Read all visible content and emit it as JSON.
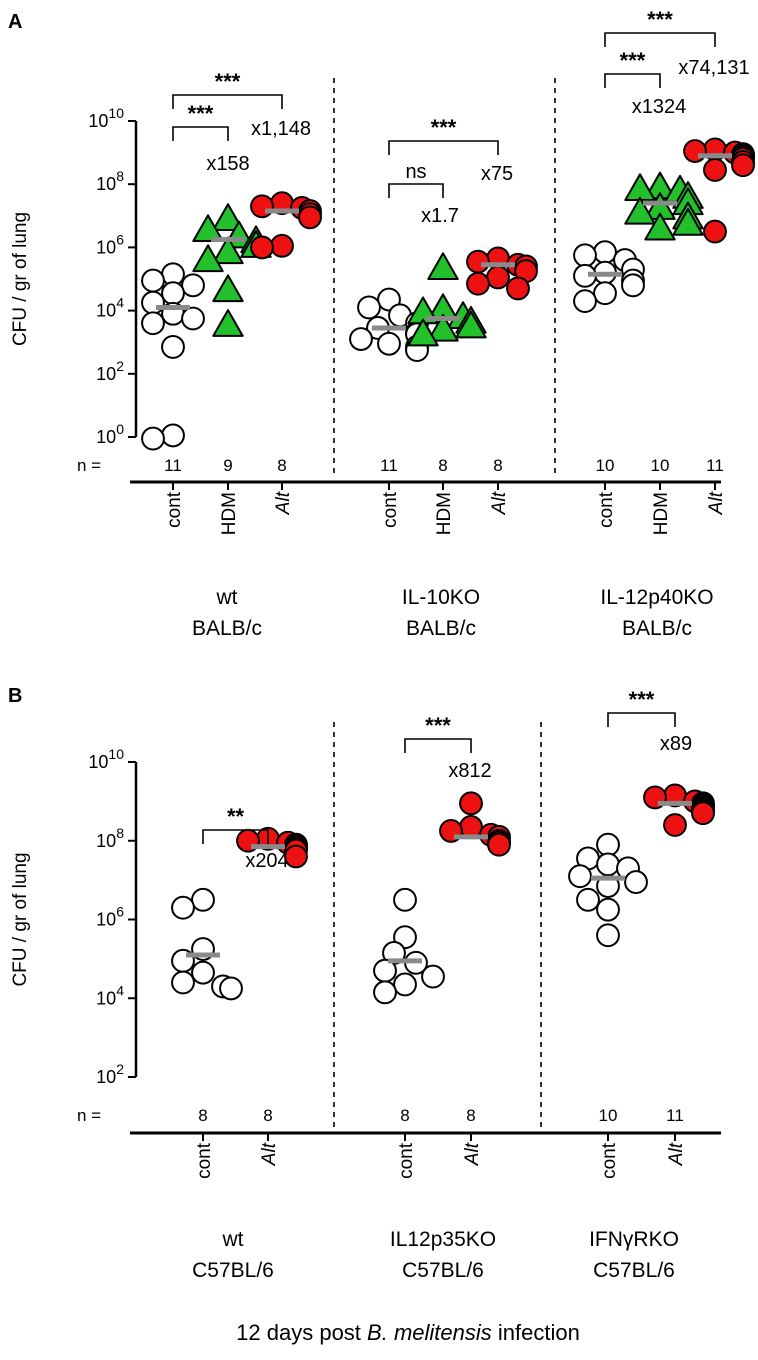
{
  "footer": {
    "prefix": "12 days post ",
    "species": "B. melitensis",
    "suffix": " infection"
  },
  "chart_data": [
    {
      "panel": "A",
      "type": "scatter",
      "yscale": "log10",
      "ylim_exp": [
        0,
        10
      ],
      "yticks": [
        {
          "base": "10",
          "exp": "0"
        },
        {
          "base": "10",
          "exp": "2"
        },
        {
          "base": "10",
          "exp": "4"
        },
        {
          "base": "10",
          "exp": "6"
        },
        {
          "base": "10",
          "exp": "8"
        },
        {
          "base": "10",
          "exp": "10"
        }
      ],
      "ylabel": "CFU / gr of lung",
      "n_label": "n =",
      "groups": [
        {
          "line1": "wt",
          "line2": "BALB/c",
          "conditions": [
            {
              "label": "cont",
              "italic": false,
              "n": "11",
              "marker": "circle",
              "color": "#ffffff",
              "log_values": [
                5.15,
                4.95,
                4.8,
                4.55,
                4.25,
                3.9,
                3.75,
                3.6,
                2.85,
                0.05,
                -0.05
              ],
              "median": 4.1
            },
            {
              "label": "HDM",
              "italic": false,
              "n": "9",
              "marker": "triangle",
              "color": "#22c02a",
              "log_values": [
                6.9,
                6.55,
                6.35,
                6.2,
                6.05,
                5.85,
                5.6,
                4.65,
                3.55
              ],
              "median": 6.25
            },
            {
              "label": "Alt",
              "italic": true,
              "n": "8",
              "marker": "circle",
              "color": "#ee1111",
              "log_values": [
                7.4,
                7.3,
                7.25,
                7.15,
                7.05,
                6.95,
                6.05,
                6.0
              ],
              "median": 7.15
            }
          ],
          "comparisons": [
            {
              "sig": "***",
              "fold": "x158",
              "from": 0,
              "to": 1
            },
            {
              "sig": "***",
              "fold": "x1,148",
              "from": 0,
              "to": 2
            }
          ]
        },
        {
          "line1": "IL-10KO",
          "line2": "BALB/c",
          "conditions": [
            {
              "label": "cont",
              "italic": false,
              "n": "11",
              "marker": "circle",
              "color": "#ffffff",
              "log_values": [
                4.35,
                4.1,
                3.85,
                3.6,
                3.45,
                3.3,
                3.25,
                3.1,
                2.95,
                2.85,
                2.75
              ],
              "median": 3.45
            },
            {
              "label": "HDM",
              "italic": false,
              "n": "8",
              "marker": "triangle",
              "color": "#22c02a",
              "log_values": [
                5.35,
                4.05,
                3.95,
                3.8,
                3.65,
                3.5,
                3.4,
                3.25
              ],
              "median": 3.75
            },
            {
              "label": "Alt",
              "italic": true,
              "n": "8",
              "marker": "circle",
              "color": "#ee1111",
              "log_values": [
                5.65,
                5.55,
                5.45,
                5.4,
                5.25,
                5.05,
                4.85,
                4.7
              ],
              "median": 5.45
            }
          ],
          "comparisons": [
            {
              "sig": "ns",
              "fold": "x1.7",
              "from": 0,
              "to": 1
            },
            {
              "sig": "***",
              "fold": "x75",
              "from": 0,
              "to": 2
            }
          ]
        },
        {
          "line1": "IL-12p40KO",
          "line2": "BALB/c",
          "conditions": [
            {
              "label": "cont",
              "italic": false,
              "n": "10",
              "marker": "circle",
              "color": "#ffffff",
              "log_values": [
                5.85,
                5.75,
                5.6,
                5.3,
                5.2,
                5.1,
                4.95,
                4.8,
                4.55,
                4.3
              ],
              "median": 5.15
            },
            {
              "label": "HDM",
              "italic": false,
              "n": "10",
              "marker": "triangle",
              "color": "#22c02a",
              "log_values": [
                7.9,
                7.85,
                7.8,
                7.6,
                7.4,
                7.25,
                7.1,
                6.95,
                6.75,
                6.6
              ],
              "median": 7.4
            },
            {
              "label": "Alt",
              "italic": true,
              "n": "11",
              "marker": "circle",
              "color": "#ee1111",
              "log_values": [
                9.1,
                9.05,
                9.0,
                8.95,
                8.9,
                8.85,
                8.8,
                8.7,
                8.6,
                8.45,
                6.5
              ],
              "median": 8.9
            }
          ],
          "comparisons": [
            {
              "sig": "***",
              "fold": "x1324",
              "from": 0,
              "to": 1
            },
            {
              "sig": "***",
              "fold": "x74,131",
              "from": 0,
              "to": 2
            }
          ]
        }
      ]
    },
    {
      "panel": "B",
      "type": "scatter",
      "yscale": "log10",
      "ylim_exp": [
        2,
        10
      ],
      "yticks": [
        {
          "base": "10",
          "exp": "2"
        },
        {
          "base": "10",
          "exp": "4"
        },
        {
          "base": "10",
          "exp": "6"
        },
        {
          "base": "10",
          "exp": "8"
        },
        {
          "base": "10",
          "exp": "10"
        }
      ],
      "ylabel": "CFU / gr of lung",
      "n_label": "n =",
      "groups": [
        {
          "line1": "wt",
          "line2": "C57BL/6",
          "conditions": [
            {
              "label": "cont",
              "italic": false,
              "n": "8",
              "marker": "circle",
              "color": "#ffffff",
              "log_values": [
                6.5,
                6.3,
                5.25,
                4.95,
                4.65,
                4.4,
                4.3,
                4.25
              ],
              "median": 5.1
            },
            {
              "label": "Alt",
              "italic": true,
              "n": "8",
              "marker": "circle",
              "color": "#ee1111",
              "log_values": [
                8.05,
                8.0,
                7.95,
                7.9,
                7.85,
                7.8,
                7.75,
                7.6
              ],
              "median": 7.85
            }
          ],
          "comparisons": [
            {
              "sig": "**",
              "fold": "x204",
              "from": 0,
              "to": 1
            }
          ]
        },
        {
          "line1": "IL12p35KO",
          "line2": "C57BL/6",
          "conditions": [
            {
              "label": "cont",
              "italic": false,
              "n": "8",
              "marker": "circle",
              "color": "#ffffff",
              "log_values": [
                6.5,
                5.55,
                5.15,
                4.9,
                4.7,
                4.55,
                4.35,
                4.15
              ],
              "median": 4.95
            },
            {
              "label": "Alt",
              "italic": true,
              "n": "8",
              "marker": "circle",
              "color": "#ee1111",
              "log_values": [
                8.95,
                8.35,
                8.25,
                8.15,
                8.1,
                8.0,
                7.95,
                7.9
              ],
              "median": 8.1
            },
            {
              "label": "",
              "italic": false,
              "n": "",
              "marker": "none",
              "color": "#ffffff",
              "log_values": []
            }
          ],
          "comparisons": [
            {
              "sig": "***",
              "fold": "x812",
              "from": 0,
              "to": 1
            }
          ]
        },
        {
          "line1": "IFNγRKO",
          "line2": "C57BL/6",
          "conditions": [
            {
              "label": "cont",
              "italic": false,
              "n": "10",
              "marker": "circle",
              "color": "#ffffff",
              "log_values": [
                7.9,
                7.55,
                7.4,
                7.3,
                7.1,
                6.95,
                6.85,
                6.5,
                6.25,
                5.6
              ],
              "median": 7.05
            },
            {
              "label": "Alt",
              "italic": true,
              "n": "11",
              "marker": "circle",
              "color": "#ee1111",
              "log_values": [
                9.15,
                9.1,
                9.0,
                8.95,
                8.9,
                8.9,
                8.85,
                8.8,
                8.75,
                8.7,
                8.4
              ],
              "median": 8.95
            }
          ],
          "comparisons": [
            {
              "sig": "***",
              "fold": "x89",
              "from": 0,
              "to": 1
            }
          ]
        }
      ]
    }
  ]
}
